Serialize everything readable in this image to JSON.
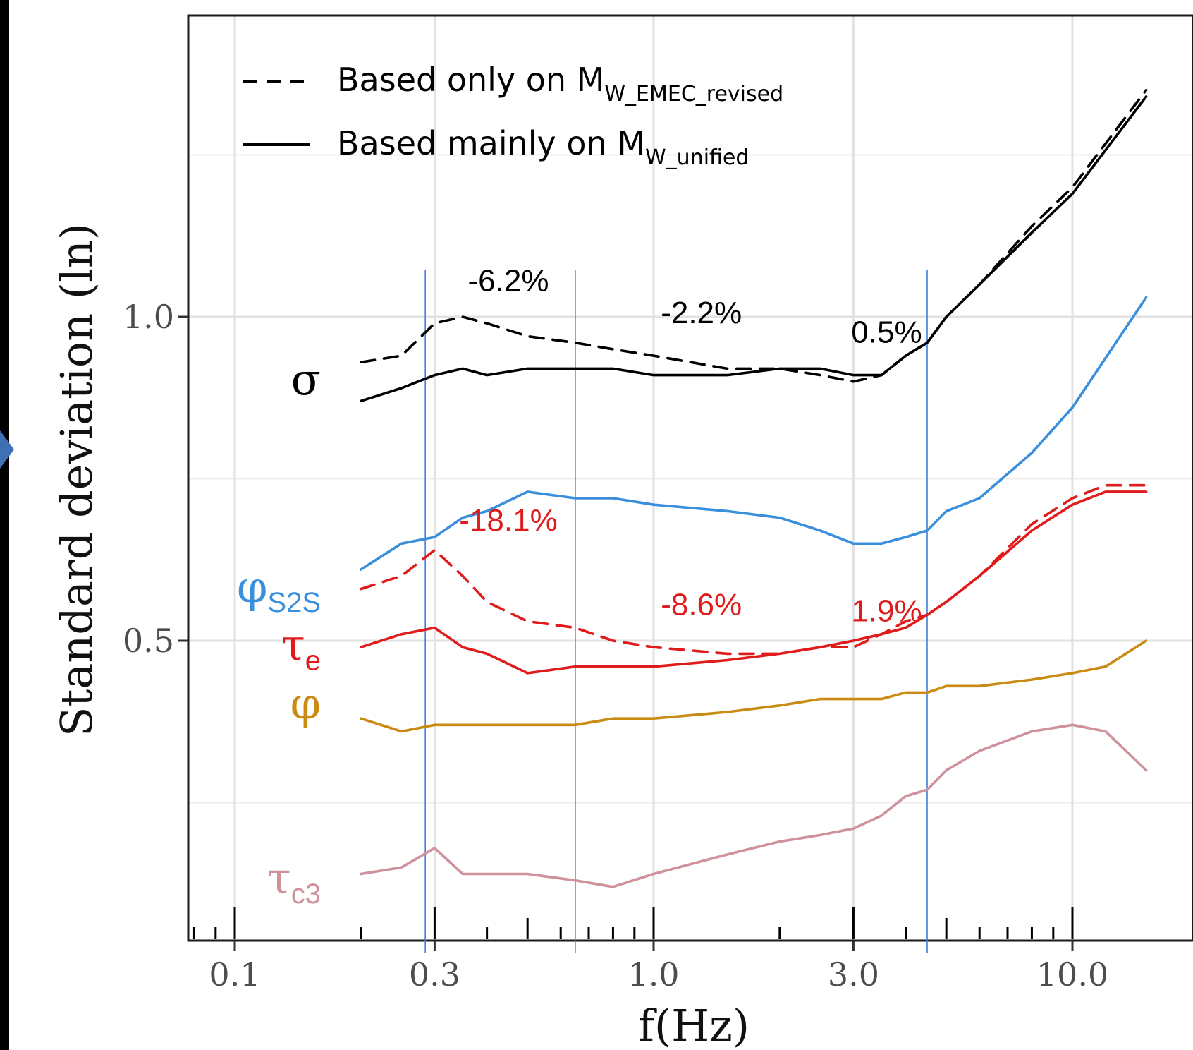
{
  "chart_data": {
    "type": "line",
    "xlabel": "f(Hz)",
    "ylabel": "Standard deviation (ln)",
    "x_scale": "log",
    "xlim": [
      0.085,
      20.0
    ],
    "ylim": [
      0.03,
      1.46
    ],
    "x_ticks": [
      {
        "value": 0.1,
        "label": "0.1"
      },
      {
        "value": 0.3,
        "label": "0.3"
      },
      {
        "value": 1.0,
        "label": "1.0"
      },
      {
        "value": 3.0,
        "label": "3.0"
      },
      {
        "value": 10.0,
        "label": "10.0"
      }
    ],
    "y_ticks": [
      {
        "value": 1.0,
        "label": "1.0"
      },
      {
        "value": 0.5,
        "label": "0.5"
      }
    ],
    "grid": true,
    "legend": {
      "placement": "top-left",
      "entries": [
        {
          "style": "dashed",
          "text": "Based only on M",
          "sub": "W_EMEC_revised"
        },
        {
          "style": "solid",
          "text": "Based mainly on M",
          "sub": "W_unified"
        }
      ]
    },
    "vertical_markers": [
      0.285,
      0.65,
      4.5
    ],
    "series": [
      {
        "name": "σ",
        "component": "sigma",
        "style": "dashed",
        "color": "#000000",
        "x": [
          0.2,
          0.25,
          0.3,
          0.35,
          0.4,
          0.5,
          0.65,
          0.8,
          1.0,
          1.5,
          2.0,
          2.5,
          3.0,
          3.5,
          4.0,
          4.5,
          5.0,
          6.0,
          8.0,
          10.0,
          15.0
        ],
        "y": [
          0.93,
          0.94,
          0.99,
          1.0,
          0.99,
          0.97,
          0.96,
          0.95,
          0.94,
          0.92,
          0.92,
          0.91,
          0.9,
          0.91,
          0.94,
          0.96,
          1.0,
          1.05,
          1.14,
          1.2,
          1.35
        ]
      },
      {
        "name": "σ",
        "component": "sigma",
        "style": "solid",
        "color": "#000000",
        "x": [
          0.2,
          0.25,
          0.3,
          0.35,
          0.4,
          0.5,
          0.65,
          0.8,
          1.0,
          1.5,
          2.0,
          2.5,
          3.0,
          3.5,
          4.0,
          4.5,
          5.0,
          6.0,
          8.0,
          10.0,
          15.0
        ],
        "y": [
          0.87,
          0.89,
          0.91,
          0.92,
          0.91,
          0.92,
          0.92,
          0.92,
          0.91,
          0.91,
          0.92,
          0.92,
          0.91,
          0.91,
          0.94,
          0.96,
          1.0,
          1.05,
          1.13,
          1.19,
          1.34
        ]
      },
      {
        "name": "φS2S",
        "component": "phiS2S",
        "style": "solid",
        "color": "#3a8fdd",
        "x": [
          0.2,
          0.25,
          0.3,
          0.35,
          0.4,
          0.5,
          0.65,
          0.8,
          1.0,
          1.5,
          2.0,
          2.5,
          3.0,
          3.5,
          4.0,
          4.5,
          5.0,
          6.0,
          8.0,
          10.0,
          15.0
        ],
        "y": [
          0.61,
          0.65,
          0.66,
          0.69,
          0.7,
          0.73,
          0.72,
          0.72,
          0.71,
          0.7,
          0.69,
          0.67,
          0.65,
          0.65,
          0.66,
          0.67,
          0.7,
          0.72,
          0.79,
          0.86,
          1.03
        ]
      },
      {
        "name": "τe",
        "component": "tau_e",
        "style": "dashed",
        "color": "#e01b1b",
        "x": [
          0.2,
          0.25,
          0.3,
          0.35,
          0.4,
          0.5,
          0.65,
          0.8,
          1.0,
          1.5,
          2.0,
          2.5,
          3.0,
          3.5,
          4.0,
          4.5,
          5.0,
          6.0,
          8.0,
          10.0,
          12.0,
          15.0
        ],
        "y": [
          0.58,
          0.6,
          0.64,
          0.6,
          0.56,
          0.53,
          0.52,
          0.5,
          0.49,
          0.48,
          0.48,
          0.49,
          0.49,
          0.51,
          0.53,
          0.54,
          0.56,
          0.6,
          0.68,
          0.72,
          0.74,
          0.74
        ]
      },
      {
        "name": "τe",
        "component": "tau_e",
        "style": "solid",
        "color": "#e01b1b",
        "x": [
          0.2,
          0.25,
          0.3,
          0.35,
          0.4,
          0.5,
          0.65,
          0.8,
          1.0,
          1.5,
          2.0,
          2.5,
          3.0,
          3.5,
          4.0,
          4.5,
          5.0,
          6.0,
          8.0,
          10.0,
          12.0,
          15.0
        ],
        "y": [
          0.49,
          0.51,
          0.52,
          0.49,
          0.48,
          0.45,
          0.46,
          0.46,
          0.46,
          0.47,
          0.48,
          0.49,
          0.5,
          0.51,
          0.52,
          0.54,
          0.56,
          0.6,
          0.67,
          0.71,
          0.73,
          0.73
        ]
      },
      {
        "name": "φ",
        "component": "phi",
        "style": "solid",
        "color": "#c98b13",
        "x": [
          0.2,
          0.25,
          0.3,
          0.35,
          0.4,
          0.5,
          0.65,
          0.8,
          1.0,
          1.5,
          2.0,
          2.5,
          3.0,
          3.5,
          4.0,
          4.5,
          5.0,
          6.0,
          8.0,
          10.0,
          12.0,
          15.0
        ],
        "y": [
          0.38,
          0.36,
          0.37,
          0.37,
          0.37,
          0.37,
          0.37,
          0.38,
          0.38,
          0.39,
          0.4,
          0.41,
          0.41,
          0.41,
          0.42,
          0.42,
          0.43,
          0.43,
          0.44,
          0.45,
          0.46,
          0.5
        ]
      },
      {
        "name": "τc3",
        "component": "tau_c3",
        "style": "solid",
        "color": "#cf929c",
        "x": [
          0.2,
          0.25,
          0.3,
          0.35,
          0.4,
          0.5,
          0.65,
          0.8,
          1.0,
          1.5,
          2.0,
          2.5,
          3.0,
          3.5,
          4.0,
          4.5,
          5.0,
          6.0,
          8.0,
          10.0,
          12.0,
          15.0
        ],
        "y": [
          0.14,
          0.15,
          0.18,
          0.14,
          0.14,
          0.14,
          0.13,
          0.12,
          0.14,
          0.17,
          0.19,
          0.2,
          0.21,
          0.23,
          0.26,
          0.27,
          0.3,
          0.33,
          0.36,
          0.37,
          0.36,
          0.3
        ]
      }
    ],
    "annotations": [
      {
        "text": "-6.2%",
        "x": 0.45,
        "y": 1.04,
        "color": "#000000"
      },
      {
        "text": "-2.2%",
        "x": 1.3,
        "y": 0.99,
        "color": "#000000"
      },
      {
        "text": "0.5%",
        "x": 3.6,
        "y": 0.96,
        "color": "#000000"
      },
      {
        "text": "-18.1%",
        "x": 0.45,
        "y": 0.67,
        "color": "#e01b1b"
      },
      {
        "text": "-8.6%",
        "x": 1.3,
        "y": 0.54,
        "color": "#e01b1b"
      },
      {
        "text": "1.9%",
        "x": 3.6,
        "y": 0.53,
        "color": "#e01b1b"
      }
    ],
    "series_labels": [
      {
        "component": "sigma",
        "text": "σ",
        "sub": "",
        "color": "#000000",
        "y": 0.88
      },
      {
        "component": "phiS2S",
        "text": "φ",
        "sub": "S2S",
        "color": "#3a8fdd",
        "y": 0.56
      },
      {
        "component": "tau_e",
        "text": "τ",
        "sub": "e",
        "color": "#e01b1b",
        "y": 0.47
      },
      {
        "component": "phi",
        "text": "φ",
        "sub": "",
        "color": "#c98b13",
        "y": 0.38
      },
      {
        "component": "tau_c3",
        "text": "τ",
        "sub": "c3",
        "color": "#cf929c",
        "y": 0.11
      }
    ]
  }
}
